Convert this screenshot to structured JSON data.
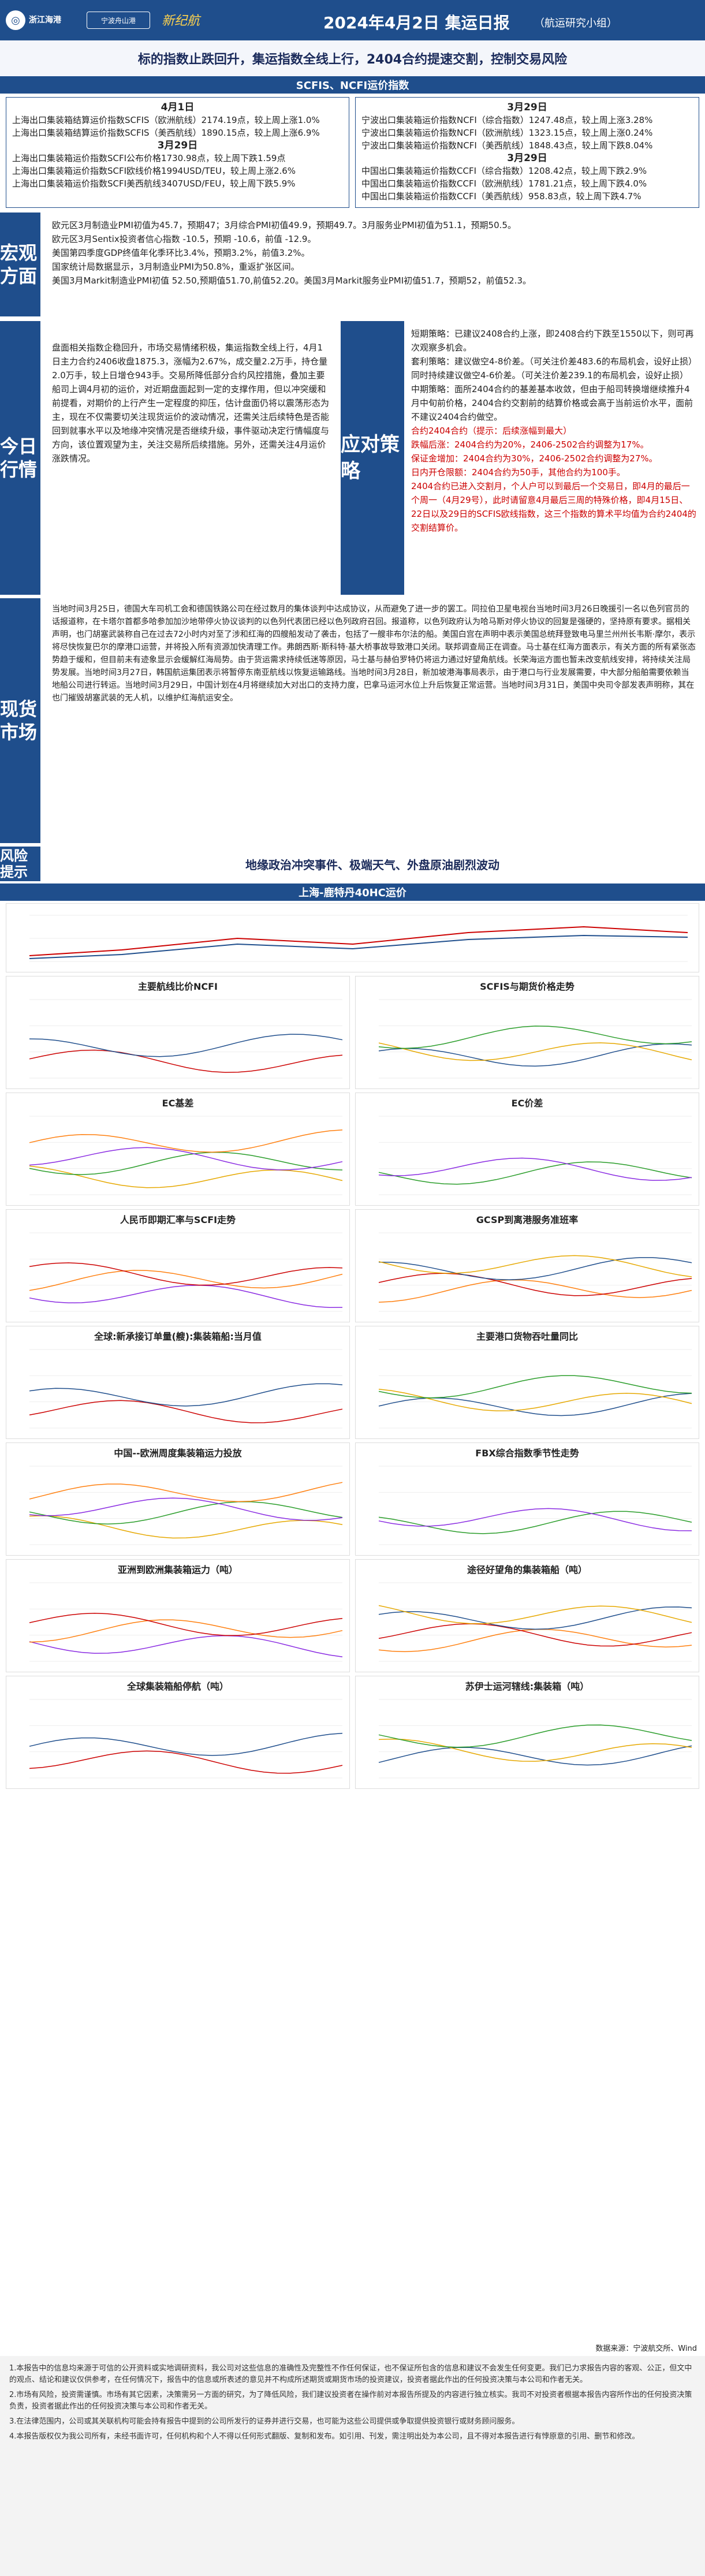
{
  "header": {
    "logo_text": "浙江海港",
    "logo2": "宁波舟山港",
    "logo3": "新纪航",
    "title": "2024年4月2日 集运日报",
    "subtitle": "（航运研究小组）"
  },
  "headline": "标的指数止跌回升，集运指数全线上行，2404合约提速交割，控制交易风险",
  "scfis_band": "SCFIS、NCFI运价指数",
  "left_box": {
    "h1": "4月1日",
    "l1": "上海出口集装箱结算运价指数SCFIS（欧洲航线）2174.19点，较上周上涨1.0%",
    "l2": "上海出口集装箱结算运价指数SCFIS（美西航线）1890.15点，较上周上涨6.9%",
    "h2": "3月29日",
    "l3": "上海出口集装箱运价指数SCFI公布价格1730.98点，较上周下跌1.59点",
    "l4": "上海出口集装箱运价指数SCFI欧线价格1994USD/TEU，较上周上涨2.6%",
    "l5": "上海出口集装箱运价指数SCFI美西航线3407USD/FEU，较上周下跌5.9%"
  },
  "right_box": {
    "h1": "3月29日",
    "l1": "宁波出口集装箱运价指数NCFI（综合指数）1247.48点，较上周上涨3.28%",
    "l2": "宁波出口集装箱运价指数NCFI（欧洲航线）1323.15点，较上周上涨0.24%",
    "l3": "宁波出口集装箱运价指数NCFI（美西航线）1848.43点，较上周下跌8.04%",
    "h2": "3月29日",
    "l4": "中国出口集装箱运价指数CCFI（综合指数）1208.42点，较上周下跌2.9%",
    "l5": "中国出口集装箱运价指数CCFI（欧洲航线）1781.21点，较上周下跌4.0%",
    "l6": "中国出口集装箱运价指数CCFI（美西航线）958.83点，较上周下跌4.7%"
  },
  "macro": {
    "side": "宏观方面",
    "lines": [
      "欧元区3月制造业PMI初值为45.7，预期47；3月综合PMI初值49.9，预期49.7。3月服务业PMI初值为51.1，预期50.5。",
      "欧元区3月Sentix投资者信心指数 -10.5，预期 -10.6，前值 -12.9。",
      "美国第四季度GDP终值年化季环比3.4%，预期3.2%，前值3.2%。",
      "国家统计局数据显示，3月制造业PMI为50.8%，重返扩张区间。",
      "美国3月Markit制造业PMI初值 52.50,预期值51.70,前值52.20。美国3月Markit服务业PMI初值51.7，预期52，前值52.3。"
    ]
  },
  "today": {
    "side": "今日行情",
    "left_text": "盘面相关指数企稳回升，市场交易情绪积极，集运指数全线上行，4月1日主力合约2406收盘1875.3，涨幅为2.67%，成交量2.2万手，持仓量2.0万手，较上日增仓943手。交易所降低部分合约风控措施，叠加主要船司上调4月初的运价，对近期盘面起到一定的支撑作用，但以冲突缓和前提看，对期价的上行产生一定程度的抑压，估计盘面仍将以震荡形态为主，现在不仅需要切关注现货运价的波动情况，还需关注后续特色是否能回到就事水平以及地缘冲突情况是否继续升级，事件驱动决定行情幅度与方向，该位置观望为主，关注交易所后续措施。另外，还需关注4月运价涨跌情况。",
    "mid": "应对策略",
    "right_plain": [
      "短期策略：已建议2408合约上涨，即2408合约下跌至1550以下，则可再次观察多机会。",
      "套利策略：建议做空4-8价差。（可关注价差483.6的布局机会，设好止损）同时持续建议做空4-6价差。（可关注价差239.1的布局机会，设好止损）",
      "中期策略：面所2404合约的基差基本收敛，但由于船司转换增继续推升4月中旬前价格，2404合约交割前的结算价格或会高于当前运价水平，面前不建议2404合约做空。"
    ],
    "right_red": [
      "合约2404合约（提示：后续涨幅到最大）",
      "跌幅后涨：2404合约为20%，2406-2502合约调整为17%。",
      "保证金增加：2404合约为30%，2406-2502合约调整为27%。",
      "日内开仓限额：2404合约为50手，其他合约为100手。",
      "2404合约已进入交割月，个人户可以到最后一个交易日，即4月的最后一个周一（4月29号），此时请留意4月最后三周的特殊价格，即4月15日、22日以及29日的SCFIS欧线指数，这三个指数的算术平均值为合约2404的交割结算价。"
    ]
  },
  "spot": {
    "side": "现货市场",
    "text": "当地时间3月25日，德国大车司机工会和德国铁路公司在经过数月的集体谈判中达成协议，从而避免了进一步的罢工。同拉伯卫星电视台当地时间3月26日晚援引一名以色列官员的话报道称，在卡塔尔首都多哈参加加沙地带停火协议谈判的以色列代表团已经以色列政府召回。报道称，以色列政府认为哈马斯对停火协议的回复是强硬的，坚持原有要求。据相关声明，也门胡塞武装称自己在过去72小时内对至了涉和红海的四艘船发动了袭击，包括了一艘非布尔法的船。美国白宫在声明中表示美国总统拜登致电马里兰州州长韦斯·摩尔，表示将尽快恢复巴尔的摩港口运营，并将投入所有资源加快清理工作。弗朗西斯·斯科特·基大桥事故导致港口关闭。联邦调查局正在调查。马士基在红海方面表示，有关方面的所有紧张态势趋于缓和，但目前未有迹象显示会缓解红海局势。由于货运需求持续低迷等原因，马士基与赫伯罗特仍将运力通过好望角航线。长荣海运方面也暂未改变航线安排，将持续关注局势发展。当地时间3月27日，韩国航运集团表示将暂停东南亚航线以恢复运输路线。当地时间3月28日，新加坡港海事局表示，由于港口与行业发展需要，中大部分船舶需要依赖当地船公司进行转运。当地时间3月29日，中国计划在4月将继续加大对出口的支持力度，巴拿马运河水位上升后恢复正常运营。当地时间3月31日，美国中央司令部发表声明称，其在也门摧毁胡塞武装的无人机，以维护红海航运安全。"
  },
  "risk": {
    "side": "风险提示",
    "text": "地缘政治冲突事件、极端天气、外盘原油剧烈波动"
  },
  "charts_band": "上海-鹿特丹40HC运价",
  "charts": [
    {
      "title": "主要航线比价NCFI"
    },
    {
      "title": "SCFIS与期货价格走势"
    },
    {
      "title": "EC基差"
    },
    {
      "title": "EC价差"
    },
    {
      "title": "人民币即期汇率与SCFI走势"
    },
    {
      "title": "GCSP到离港服务准班率"
    },
    {
      "title": "全球:新承接订单量(艘):集装箱船:当月值"
    },
    {
      "title": "主要港口货物吞吐量同比"
    },
    {
      "title": "中国--欧洲周度集装箱运力投放"
    },
    {
      "title": "FBX综合指数季节性走势"
    },
    {
      "title": "亚洲到欧洲集装箱运力（吨）"
    },
    {
      "title": "途径好望角的集装箱船（吨）"
    },
    {
      "title": "全球集装箱船停航（吨）"
    },
    {
      "title": "苏伊士运河辖线:集装箱（吨）"
    }
  ],
  "colors": {
    "brand": "#1f4e8c",
    "alert": "#cc0000",
    "gold": "#ffd34d"
  },
  "source": "数据来源：宁波航交所、Wind",
  "footnotes": [
    "1.本报告中的信息均来源于可信的公开资料或实地调研资料，我公司对这些信息的准确性及完整性不作任何保证，也不保证所包含的信息和建议不会发生任何变更。我们已力求报告内容的客观、公正，但文中的观点、结论和建议仅供参考，在任何情况下，报告中的信息或所表述的意见并不构成所述期货或期货市场的投资建议，投资者据此作出的任何投资决策与本公司和作者无关。",
    "2.市场有风险，投资需谨慎。市场有其它因素，决策需另一方面的研究，为了降低风险，我们建议投资者在操作前对本报告所提及的内容进行独立核实。我司不对投资者根据本报告内容所作出的任何投资决策负责，投资者据此作出的任何投资决策与本公司和作者无关。",
    "3.在法律范围内，公司或其关联机构可能会持有报告中提到的公司所发行的证券并进行交易，也可能为这些公司提供或争取提供投资银行或财务顾问服务。",
    "4.本报告版权仅为我公司所有，未经书面许可，任何机构和个人不得以任何形式翻版、复制和发布。如引用、刊发，需注明出处为本公司，且不得对本报告进行有悖原意的引用、删节和修改。"
  ]
}
